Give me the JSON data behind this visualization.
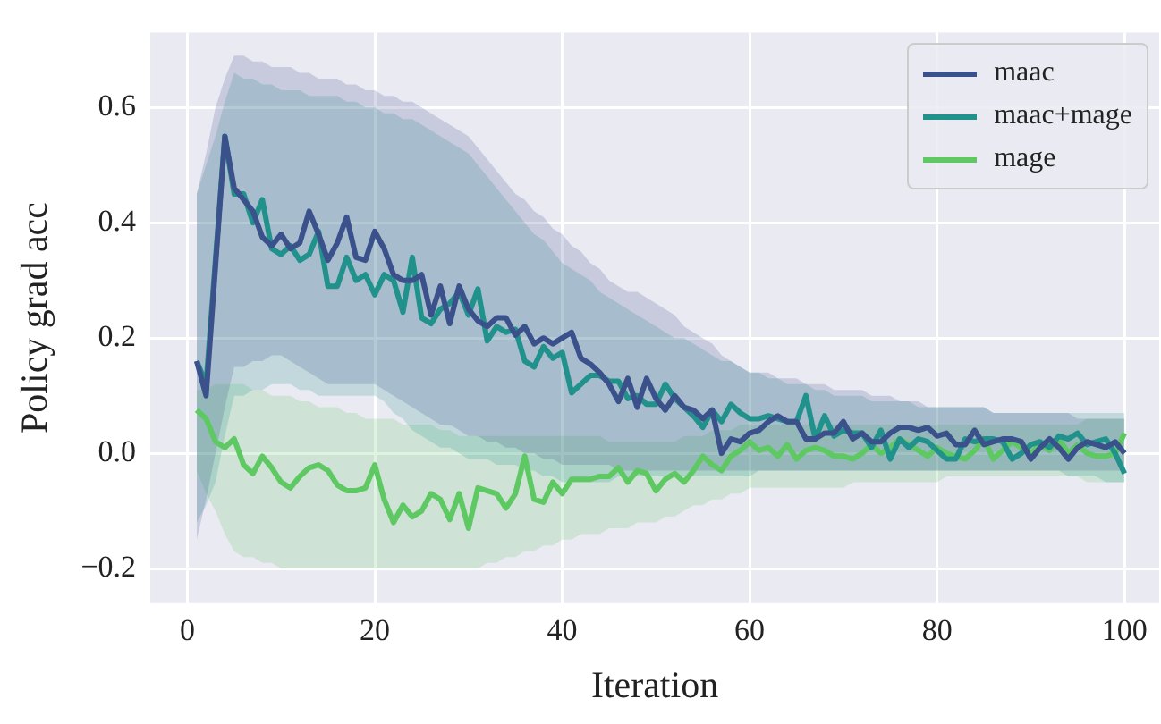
{
  "chart_data": {
    "type": "line",
    "xlabel": "Iteration",
    "ylabel": "Policy grad acc",
    "x": [
      1,
      2,
      3,
      4,
      5,
      6,
      7,
      8,
      9,
      10,
      11,
      12,
      13,
      14,
      15,
      16,
      17,
      18,
      19,
      20,
      21,
      22,
      23,
      24,
      25,
      26,
      27,
      28,
      29,
      30,
      31,
      32,
      33,
      34,
      35,
      36,
      37,
      38,
      39,
      40,
      41,
      42,
      43,
      44,
      45,
      46,
      47,
      48,
      49,
      50,
      51,
      52,
      53,
      54,
      55,
      56,
      57,
      58,
      59,
      60,
      61,
      62,
      63,
      64,
      65,
      66,
      67,
      68,
      69,
      70,
      71,
      72,
      73,
      74,
      75,
      76,
      77,
      78,
      79,
      80,
      81,
      82,
      83,
      84,
      85,
      86,
      87,
      88,
      89,
      90,
      91,
      92,
      93,
      94,
      95,
      96,
      97,
      98,
      99,
      100
    ],
    "xlim": [
      -3.95,
      103.7
    ],
    "xticks": [
      0,
      20,
      40,
      60,
      80,
      100
    ],
    "ylim": [
      -0.26,
      0.73
    ],
    "yticks": [
      {
        "value": -0.2,
        "label": "−0.2"
      },
      {
        "value": 0,
        "label": "0.0"
      },
      {
        "value": 0.2,
        "label": "0.2"
      },
      {
        "value": 0.4,
        "label": "0.4"
      },
      {
        "value": 0.6,
        "label": "0.6"
      }
    ],
    "grid": true,
    "legend": "top right",
    "marker": "none",
    "line_style": "solid",
    "series": [
      {
        "name": "maac",
        "color": "#3b518b",
        "values": [
          0.16,
          0.1,
          0.325,
          0.55,
          0.46,
          0.44,
          0.42,
          0.375,
          0.36,
          0.38,
          0.355,
          0.365,
          0.42,
          0.38,
          0.335,
          0.365,
          0.41,
          0.34,
          0.335,
          0.385,
          0.355,
          0.31,
          0.3,
          0.3,
          0.31,
          0.24,
          0.29,
          0.225,
          0.29,
          0.25,
          0.23,
          0.22,
          0.235,
          0.235,
          0.205,
          0.22,
          0.19,
          0.2,
          0.19,
          0.2,
          0.21,
          0.165,
          0.155,
          0.14,
          0.12,
          0.09,
          0.13,
          0.08,
          0.13,
          0.095,
          0.075,
          0.1,
          0.08,
          0.075,
          0.06,
          0.075,
          0.0,
          0.025,
          0.02,
          0.035,
          0.04,
          0.055,
          0.065,
          0.055,
          0.055,
          0.025,
          0.025,
          0.035,
          0.035,
          0.055,
          0.025,
          0.035,
          0.02,
          0.02,
          0.035,
          0.045,
          0.045,
          0.04,
          0.045,
          0.03,
          0.035,
          0.015,
          0.015,
          0.04,
          0.015,
          0.02,
          0.025,
          0.025,
          0.02,
          -0.01,
          0.01,
          0.025,
          0.01,
          -0.01,
          0.01,
          0.02,
          0.015,
          0.01,
          0.02,
          0.0
        ],
        "upper": [
          0.45,
          0.52,
          0.6,
          0.65,
          0.69,
          0.69,
          0.68,
          0.68,
          0.67,
          0.67,
          0.67,
          0.66,
          0.66,
          0.65,
          0.65,
          0.65,
          0.64,
          0.64,
          0.63,
          0.63,
          0.62,
          0.62,
          0.61,
          0.61,
          0.6,
          0.59,
          0.58,
          0.57,
          0.56,
          0.55,
          0.53,
          0.51,
          0.49,
          0.47,
          0.45,
          0.44,
          0.42,
          0.41,
          0.39,
          0.38,
          0.36,
          0.35,
          0.33,
          0.32,
          0.3,
          0.29,
          0.28,
          0.28,
          0.27,
          0.26,
          0.25,
          0.24,
          0.22,
          0.21,
          0.2,
          0.19,
          0.17,
          0.16,
          0.15,
          0.14,
          0.14,
          0.14,
          0.13,
          0.13,
          0.13,
          0.12,
          0.12,
          0.12,
          0.11,
          0.11,
          0.11,
          0.11,
          0.1,
          0.1,
          0.1,
          0.09,
          0.09,
          0.09,
          0.08,
          0.08,
          0.08,
          0.08,
          0.08,
          0.08,
          0.08,
          0.07,
          0.07,
          0.07,
          0.07,
          0.07,
          0.07,
          0.07,
          0.07,
          0.07,
          0.06,
          0.06,
          0.06,
          0.06,
          0.06,
          0.06
        ],
        "lower": [
          -0.15,
          -0.08,
          0.0,
          0.08,
          0.15,
          0.15,
          0.16,
          0.16,
          0.17,
          0.17,
          0.16,
          0.15,
          0.14,
          0.13,
          0.12,
          0.12,
          0.12,
          0.12,
          0.12,
          0.12,
          0.11,
          0.1,
          0.09,
          0.08,
          0.07,
          0.06,
          0.05,
          0.05,
          0.04,
          0.03,
          0.03,
          0.02,
          0.02,
          0.01,
          0.01,
          0.0,
          0.0,
          -0.01,
          -0.01,
          -0.02,
          -0.02,
          -0.02,
          -0.02,
          -0.02,
          -0.02,
          -0.03,
          -0.03,
          -0.03,
          -0.03,
          -0.03,
          -0.03,
          -0.03,
          -0.03,
          -0.03,
          -0.03,
          -0.03,
          -0.03,
          -0.03,
          -0.03,
          -0.03,
          -0.03,
          -0.03,
          -0.03,
          -0.03,
          -0.03,
          -0.03,
          -0.03,
          -0.03,
          -0.03,
          -0.03,
          -0.03,
          -0.03,
          -0.03,
          -0.03,
          -0.03,
          -0.03,
          -0.03,
          -0.03,
          -0.03,
          -0.03,
          -0.03,
          -0.03,
          -0.03,
          -0.03,
          -0.03,
          -0.03,
          -0.03,
          -0.03,
          -0.03,
          -0.03,
          -0.03,
          -0.03,
          -0.03,
          -0.03,
          -0.03,
          -0.03,
          -0.03,
          -0.03,
          -0.03,
          -0.03
        ]
      },
      {
        "name": "maac+mage",
        "color": "#21918c",
        "values": [
          0.16,
          0.12,
          0.335,
          0.55,
          0.45,
          0.45,
          0.4,
          0.44,
          0.355,
          0.345,
          0.36,
          0.335,
          0.345,
          0.385,
          0.29,
          0.29,
          0.34,
          0.3,
          0.31,
          0.275,
          0.31,
          0.3,
          0.245,
          0.34,
          0.235,
          0.225,
          0.25,
          0.26,
          0.28,
          0.24,
          0.285,
          0.195,
          0.22,
          0.21,
          0.215,
          0.16,
          0.15,
          0.185,
          0.165,
          0.175,
          0.105,
          0.12,
          0.135,
          0.135,
          0.125,
          0.125,
          0.095,
          0.1,
          0.085,
          0.085,
          0.12,
          0.095,
          0.08,
          0.065,
          0.045,
          0.075,
          0.055,
          0.085,
          0.07,
          0.06,
          0.06,
          0.065,
          0.06,
          0.055,
          0.055,
          0.1,
          0.025,
          0.065,
          0.03,
          0.04,
          0.035,
          0.035,
          0.01,
          0.04,
          -0.01,
          0.025,
          0.01,
          0.025,
          0.02,
          0.005,
          -0.01,
          -0.01,
          0.025,
          0.02,
          0.025,
          0.025,
          0.02,
          -0.01,
          0.0,
          0.015,
          0.02,
          0.01,
          0.03,
          0.025,
          0.035,
          0.015,
          0.02,
          0.025,
          0.0,
          -0.035
        ],
        "upper": [
          0.45,
          0.5,
          0.55,
          0.61,
          0.66,
          0.65,
          0.65,
          0.64,
          0.64,
          0.63,
          0.63,
          0.63,
          0.62,
          0.62,
          0.62,
          0.62,
          0.61,
          0.61,
          0.6,
          0.6,
          0.59,
          0.59,
          0.58,
          0.58,
          0.57,
          0.56,
          0.55,
          0.54,
          0.53,
          0.52,
          0.5,
          0.48,
          0.46,
          0.44,
          0.42,
          0.4,
          0.38,
          0.37,
          0.35,
          0.33,
          0.32,
          0.31,
          0.3,
          0.28,
          0.27,
          0.26,
          0.25,
          0.24,
          0.23,
          0.22,
          0.21,
          0.2,
          0.2,
          0.19,
          0.18,
          0.17,
          0.16,
          0.16,
          0.15,
          0.14,
          0.14,
          0.13,
          0.13,
          0.12,
          0.12,
          0.12,
          0.11,
          0.11,
          0.1,
          0.1,
          0.1,
          0.1,
          0.09,
          0.09,
          0.09,
          0.09,
          0.09,
          0.08,
          0.08,
          0.08,
          0.08,
          0.08,
          0.08,
          0.08,
          0.08,
          0.07,
          0.07,
          0.07,
          0.07,
          0.07,
          0.07,
          0.07,
          0.07,
          0.07,
          0.07,
          0.07,
          0.07,
          0.07,
          0.07,
          0.07
        ],
        "lower": [
          -0.12,
          -0.09,
          -0.05,
          0.03,
          0.1,
          0.1,
          0.11,
          0.11,
          0.12,
          0.12,
          0.12,
          0.11,
          0.11,
          0.1,
          0.1,
          0.1,
          0.1,
          0.1,
          0.1,
          0.1,
          0.09,
          0.07,
          0.06,
          0.04,
          0.03,
          0.02,
          0.01,
          0.01,
          0.0,
          -0.01,
          -0.01,
          -0.01,
          -0.02,
          -0.02,
          -0.02,
          -0.03,
          -0.03,
          -0.04,
          -0.04,
          -0.05,
          -0.05,
          -0.05,
          -0.05,
          -0.05,
          -0.05,
          -0.04,
          -0.04,
          -0.04,
          -0.04,
          -0.04,
          -0.04,
          -0.04,
          -0.04,
          -0.04,
          -0.04,
          -0.04,
          -0.04,
          -0.04,
          -0.04,
          -0.04,
          -0.03,
          -0.03,
          -0.03,
          -0.03,
          -0.03,
          -0.03,
          -0.03,
          -0.03,
          -0.03,
          -0.03,
          -0.03,
          -0.03,
          -0.03,
          -0.03,
          -0.03,
          -0.03,
          -0.03,
          -0.03,
          -0.03,
          -0.03,
          -0.03,
          -0.03,
          -0.03,
          -0.03,
          -0.03,
          -0.03,
          -0.03,
          -0.03,
          -0.03,
          -0.03,
          -0.03,
          -0.03,
          -0.03,
          -0.04,
          -0.04,
          -0.04,
          -0.04,
          -0.05,
          -0.05,
          -0.05
        ]
      },
      {
        "name": "mage",
        "color": "#5ec962",
        "values": [
          0.075,
          0.06,
          0.02,
          0.01,
          0.025,
          -0.02,
          -0.035,
          -0.005,
          -0.025,
          -0.05,
          -0.06,
          -0.04,
          -0.025,
          -0.02,
          -0.03,
          -0.055,
          -0.065,
          -0.065,
          -0.06,
          -0.02,
          -0.08,
          -0.12,
          -0.09,
          -0.11,
          -0.1,
          -0.07,
          -0.08,
          -0.115,
          -0.07,
          -0.13,
          -0.06,
          -0.065,
          -0.07,
          -0.095,
          -0.07,
          -0.005,
          -0.08,
          -0.085,
          -0.05,
          -0.07,
          -0.045,
          -0.045,
          -0.045,
          -0.04,
          -0.04,
          -0.025,
          -0.05,
          -0.03,
          -0.035,
          -0.065,
          -0.045,
          -0.035,
          -0.05,
          -0.03,
          -0.005,
          -0.02,
          -0.03,
          -0.005,
          0.005,
          0.02,
          0.005,
          0.01,
          -0.005,
          0.015,
          -0.01,
          0.005,
          0.01,
          0.005,
          -0.005,
          -0.005,
          -0.01,
          0.0,
          0.015,
          0.0,
          0.01,
          0.025,
          0.015,
          0.005,
          -0.005,
          0.01,
          0.0,
          -0.005,
          -0.01,
          0.005,
          0.025,
          -0.01,
          0.005,
          0.02,
          0.01,
          0.0,
          0.015,
          0.005,
          0.025,
          0.0,
          0.015,
          0.0,
          -0.005,
          -0.005,
          0.0,
          0.035
        ],
        "upper": [
          0.11,
          0.11,
          0.12,
          0.12,
          0.12,
          0.12,
          0.11,
          0.11,
          0.1,
          0.1,
          0.1,
          0.09,
          0.09,
          0.08,
          0.08,
          0.08,
          0.07,
          0.07,
          0.06,
          0.06,
          0.06,
          0.06,
          0.05,
          0.05,
          0.05,
          0.05,
          0.04,
          0.04,
          0.03,
          0.03,
          0.03,
          0.03,
          0.03,
          0.03,
          0.03,
          0.03,
          0.03,
          0.03,
          0.03,
          0.03,
          0.03,
          0.03,
          0.03,
          0.03,
          0.02,
          0.02,
          0.02,
          0.02,
          0.02,
          0.02,
          0.02,
          0.02,
          0.03,
          0.03,
          0.03,
          0.04,
          0.04,
          0.04,
          0.05,
          0.05,
          0.05,
          0.05,
          0.05,
          0.05,
          0.05,
          0.05,
          0.05,
          0.05,
          0.05,
          0.05,
          0.05,
          0.05,
          0.05,
          0.05,
          0.05,
          0.05,
          0.05,
          0.05,
          0.05,
          0.05,
          0.05,
          0.05,
          0.05,
          0.05,
          0.05,
          0.05,
          0.05,
          0.05,
          0.05,
          0.05,
          0.05,
          0.05,
          0.05,
          0.05,
          0.05,
          0.06,
          0.06,
          0.06,
          0.06,
          0.06
        ],
        "lower": [
          -0.03,
          -0.07,
          -0.1,
          -0.14,
          -0.17,
          -0.18,
          -0.18,
          -0.19,
          -0.19,
          -0.2,
          -0.2,
          -0.2,
          -0.2,
          -0.2,
          -0.2,
          -0.2,
          -0.2,
          -0.2,
          -0.2,
          -0.2,
          -0.2,
          -0.2,
          -0.2,
          -0.2,
          -0.2,
          -0.2,
          -0.2,
          -0.2,
          -0.2,
          -0.2,
          -0.2,
          -0.19,
          -0.19,
          -0.18,
          -0.18,
          -0.17,
          -0.17,
          -0.16,
          -0.16,
          -0.15,
          -0.15,
          -0.14,
          -0.14,
          -0.14,
          -0.13,
          -0.13,
          -0.13,
          -0.12,
          -0.12,
          -0.12,
          -0.11,
          -0.11,
          -0.1,
          -0.09,
          -0.09,
          -0.08,
          -0.08,
          -0.07,
          -0.07,
          -0.06,
          -0.06,
          -0.06,
          -0.06,
          -0.06,
          -0.06,
          -0.06,
          -0.06,
          -0.06,
          -0.06,
          -0.06,
          -0.05,
          -0.05,
          -0.05,
          -0.05,
          -0.05,
          -0.05,
          -0.05,
          -0.05,
          -0.05,
          -0.05,
          -0.04,
          -0.04,
          -0.04,
          -0.04,
          -0.04,
          -0.04,
          -0.04,
          -0.04,
          -0.04,
          -0.04,
          -0.04,
          -0.04,
          -0.04,
          -0.04,
          -0.04,
          -0.05,
          -0.05,
          -0.05,
          -0.05,
          -0.05
        ]
      }
    ]
  }
}
